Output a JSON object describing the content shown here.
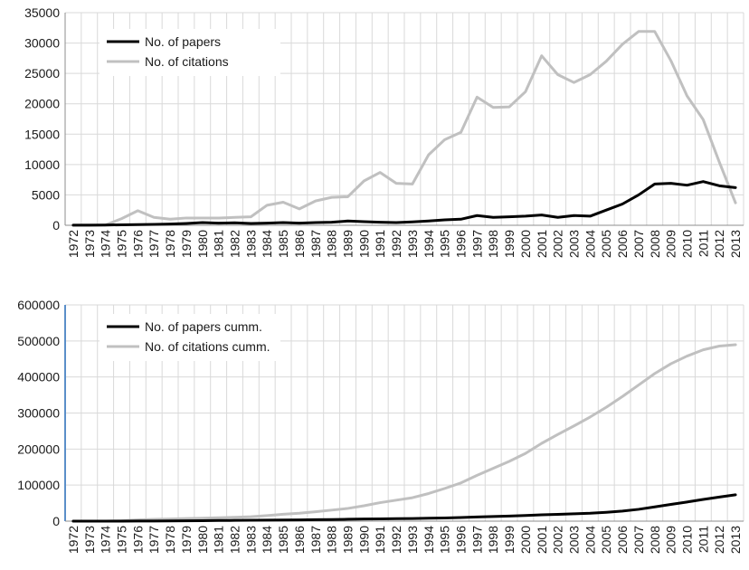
{
  "chart_data": [
    {
      "type": "line",
      "title": "",
      "xlabel": "",
      "ylabel": "",
      "ylim": [
        0,
        35000
      ],
      "yticks": [
        0,
        5000,
        10000,
        15000,
        20000,
        25000,
        30000,
        35000
      ],
      "grid": true,
      "legend_position": "top-left",
      "x": [
        "1972",
        "1973",
        "1974",
        "1975",
        "1976",
        "1977",
        "1978",
        "1979",
        "1980",
        "1981",
        "1982",
        "1983",
        "1984",
        "1985",
        "1986",
        "1987",
        "1988",
        "1989",
        "1990",
        "1991",
        "1992",
        "1993",
        "1994",
        "1995",
        "1996",
        "1997",
        "1998",
        "1999",
        "2000",
        "2001",
        "2002",
        "2003",
        "2004",
        "2005",
        "2006",
        "2007",
        "2008",
        "2009",
        "2010",
        "2011",
        "2012",
        "2013"
      ],
      "series": [
        {
          "name": "No. of papers",
          "color": "#000000",
          "values": [
            10,
            20,
            40,
            80,
            120,
            150,
            200,
            300,
            450,
            350,
            400,
            300,
            350,
            450,
            350,
            450,
            500,
            700,
            600,
            500,
            450,
            550,
            700,
            900,
            1000,
            1600,
            1300,
            1400,
            1500,
            1700,
            1300,
            1600,
            1500,
            2500,
            3500,
            5000,
            6800,
            6900,
            6600,
            7200,
            6500,
            6200
          ]
        },
        {
          "name": "No. of citations",
          "color": "#c0c0c0",
          "values": [
            10,
            30,
            50,
            1100,
            2400,
            1300,
            1000,
            1200,
            1200,
            1200,
            1300,
            1400,
            3300,
            3800,
            2700,
            4000,
            4600,
            4700,
            7300,
            8700,
            6900,
            6800,
            11600,
            14100,
            15300,
            21100,
            19400,
            19500,
            22000,
            27900,
            24800,
            23500,
            24800,
            27000,
            29800,
            31900,
            31900,
            27100,
            21300,
            17400,
            10400,
            3700
          ]
        }
      ]
    },
    {
      "type": "line",
      "title": "",
      "xlabel": "",
      "ylabel": "",
      "ylim": [
        0,
        600000
      ],
      "yticks": [
        0,
        100000,
        200000,
        300000,
        400000,
        500000,
        600000
      ],
      "grid": true,
      "legend_position": "top-left",
      "x": [
        "1972",
        "1973",
        "1974",
        "1975",
        "1976",
        "1977",
        "1978",
        "1979",
        "1980",
        "1981",
        "1982",
        "1983",
        "1984",
        "1985",
        "1986",
        "1987",
        "1988",
        "1989",
        "1990",
        "1991",
        "1992",
        "1993",
        "1994",
        "1995",
        "1996",
        "1997",
        "1998",
        "1999",
        "2000",
        "2001",
        "2002",
        "2003",
        "2004",
        "2005",
        "2006",
        "2007",
        "2008",
        "2009",
        "2010",
        "2011",
        "2012",
        "2013"
      ],
      "series": [
        {
          "name": "No. of papers cumm.",
          "color": "#000000",
          "values": [
            10,
            30,
            70,
            150,
            270,
            420,
            620,
            920,
            1370,
            1720,
            2120,
            2420,
            2770,
            3220,
            3570,
            4020,
            4520,
            5220,
            5820,
            6320,
            6770,
            7320,
            8020,
            8920,
            9920,
            11520,
            12820,
            14220,
            15720,
            17420,
            18720,
            20320,
            21820,
            24320,
            27820,
            32820,
            39620,
            46520,
            53120,
            60320,
            66820,
            73020
          ]
        },
        {
          "name": "No. of citations cumm.",
          "color": "#c0c0c0",
          "values": [
            10,
            40,
            90,
            1190,
            3590,
            4890,
            5890,
            7090,
            8290,
            9490,
            10790,
            12190,
            15490,
            19290,
            21990,
            25990,
            30590,
            35290,
            42590,
            51290,
            58190,
            64990,
            76590,
            90690,
            105990,
            127090,
            146490,
            165990,
            187990,
            215890,
            240690,
            264190,
            288990,
            315990,
            345790,
            377690,
            409590,
            436690,
            457990,
            475390,
            485790,
            489490
          ]
        }
      ]
    }
  ]
}
